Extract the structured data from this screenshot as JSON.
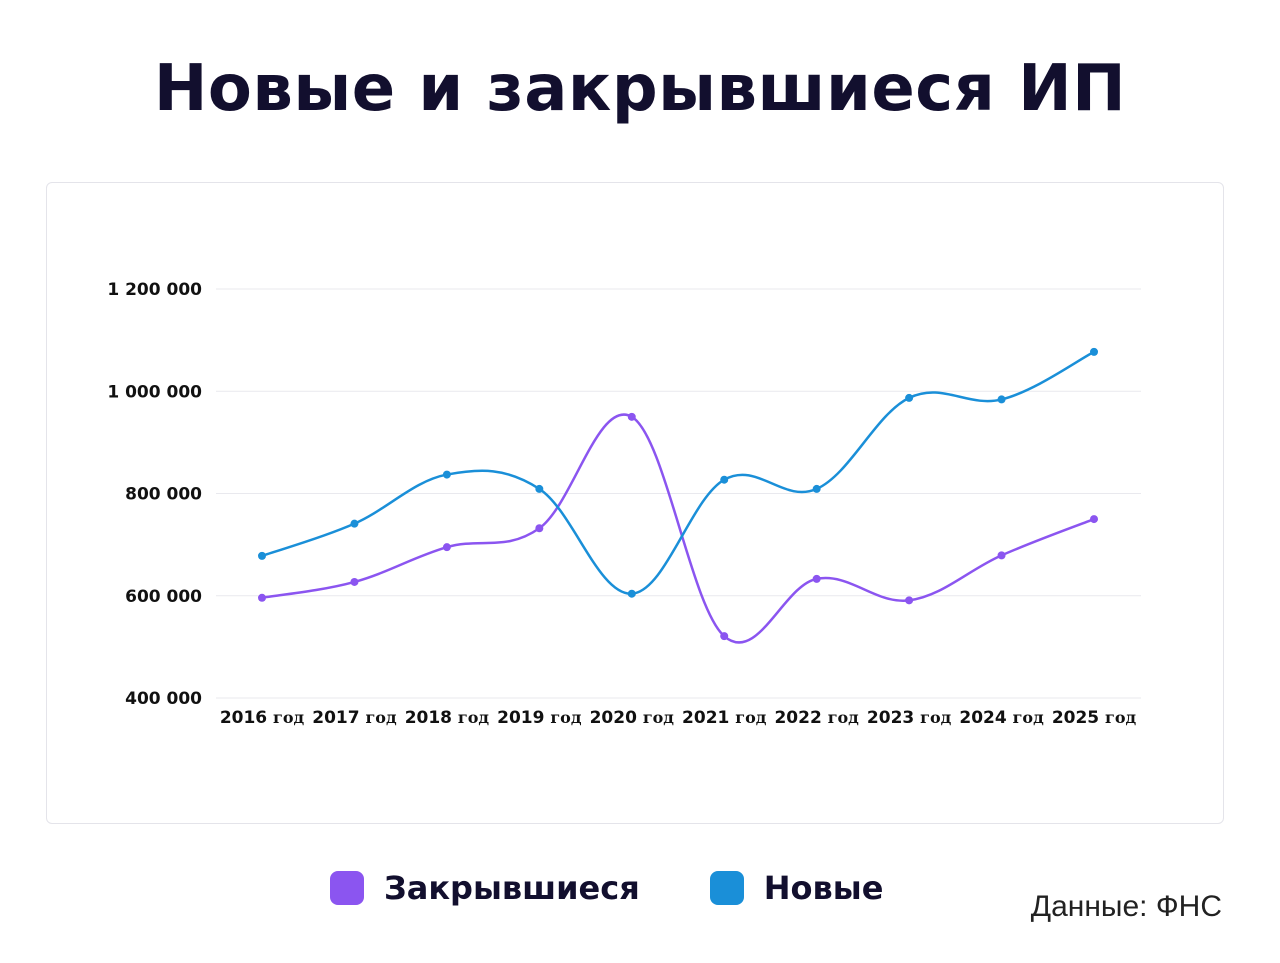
{
  "title": "Новые и закрывшиеся ИП",
  "source": "Данные: ФНС",
  "colors": {
    "closed": "#8b55f0",
    "new": "#1a8fd8",
    "grid": "#e9e9ee"
  },
  "legend": [
    {
      "label": "Закрывшиеся",
      "color": "#8b55f0"
    },
    {
      "label": "Новые",
      "color": "#1a8fd8"
    }
  ],
  "chart_data": {
    "type": "line",
    "categories": [
      "2016",
      "2017",
      "2018",
      "2019",
      "2020",
      "2021",
      "2022",
      "2023",
      "2024",
      "2025"
    ],
    "category_suffix": "год",
    "yticks": [
      "400 000",
      "600 000",
      "800 000",
      "1 000 000",
      "1 200 000"
    ],
    "ylim": [
      400000,
      1200000
    ],
    "grid": true,
    "legend_position": "bottom",
    "series": [
      {
        "name": "Закрывшиеся",
        "color": "#8b55f0",
        "values": [
          596000,
          627000,
          695000,
          732000,
          950000,
          521000,
          633000,
          591000,
          679000,
          750000
        ]
      },
      {
        "name": "Новые",
        "color": "#1a8fd8",
        "values": [
          678000,
          741000,
          837000,
          809000,
          604000,
          827000,
          809000,
          987000,
          984000,
          1077000
        ]
      }
    ]
  }
}
